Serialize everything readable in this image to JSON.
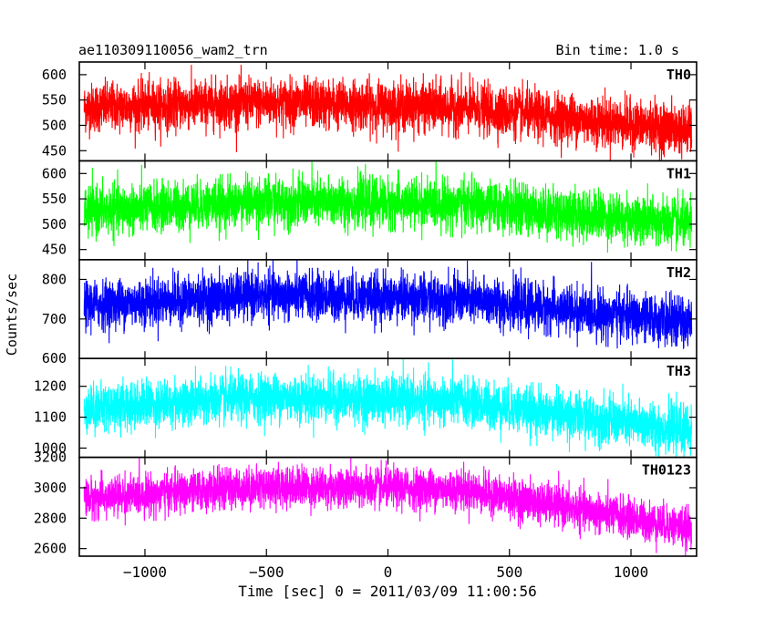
{
  "header": {
    "title": "ae110309110056_wam2_trn",
    "bin_time": "Bin time: 1.0 s"
  },
  "chart_data": {
    "type": "line",
    "ylabel": "Counts/sec",
    "xlabel": "Time [sec] 0 = 2011/03/09 11:00:56",
    "xlim": [
      -1270,
      1270
    ],
    "x_ticks": [
      -1000,
      -500,
      0,
      500,
      1000
    ],
    "x_tick_labels": [
      "−1000",
      "−500",
      "0",
      "500",
      "1000"
    ],
    "x_range_data": [
      -1250,
      1250
    ],
    "panels": [
      {
        "name": "TH0",
        "color": "#ff0000",
        "ylim": [
          430,
          625
        ],
        "y_ticks": [
          450,
          500,
          550,
          600
        ],
        "y_tick_labels": [
          "450",
          "500",
          "550",
          "600"
        ],
        "trend": [
          {
            "x": -1250,
            "y": 535
          },
          {
            "x": -500,
            "y": 545
          },
          {
            "x": 300,
            "y": 535
          },
          {
            "x": 1250,
            "y": 490
          }
        ],
        "noise_sd": 24
      },
      {
        "name": "TH1",
        "color": "#00ff00",
        "ylim": [
          430,
          625
        ],
        "y_ticks": [
          450,
          500,
          550,
          600
        ],
        "y_tick_labels": [
          "450",
          "500",
          "550",
          "600"
        ],
        "trend": [
          {
            "x": -1250,
            "y": 525
          },
          {
            "x": -500,
            "y": 545
          },
          {
            "x": 300,
            "y": 540
          },
          {
            "x": 1250,
            "y": 500
          }
        ],
        "noise_sd": 24
      },
      {
        "name": "TH2",
        "color": "#0000ff",
        "ylim": [
          600,
          850
        ],
        "y_ticks": [
          600,
          700,
          800
        ],
        "y_tick_labels": [
          "600",
          "700",
          "800"
        ],
        "trend": [
          {
            "x": -1250,
            "y": 735
          },
          {
            "x": -500,
            "y": 760
          },
          {
            "x": 300,
            "y": 750
          },
          {
            "x": 1250,
            "y": 690
          }
        ],
        "noise_sd": 30
      },
      {
        "name": "TH3",
        "color": "#00ffff",
        "ylim": [
          970,
          1290
        ],
        "y_ticks": [
          1000,
          1100,
          1200
        ],
        "y_tick_labels": [
          "1000",
          "1100",
          "1200"
        ],
        "trend": [
          {
            "x": -1250,
            "y": 1130
          },
          {
            "x": -500,
            "y": 1165
          },
          {
            "x": 300,
            "y": 1150
          },
          {
            "x": 1250,
            "y": 1055
          }
        ],
        "noise_sd": 38
      },
      {
        "name": "TH0123",
        "color": "#ff00ff",
        "ylim": [
          2550,
          3200
        ],
        "y_ticks": [
          2600,
          2800,
          3000,
          3200
        ],
        "y_tick_labels": [
          "2600",
          "2800",
          "3000",
          "3200"
        ],
        "trend": [
          {
            "x": -1250,
            "y": 2930
          },
          {
            "x": -500,
            "y": 3010
          },
          {
            "x": 300,
            "y": 2990
          },
          {
            "x": 1250,
            "y": 2730
          }
        ],
        "noise_sd": 65
      }
    ]
  }
}
